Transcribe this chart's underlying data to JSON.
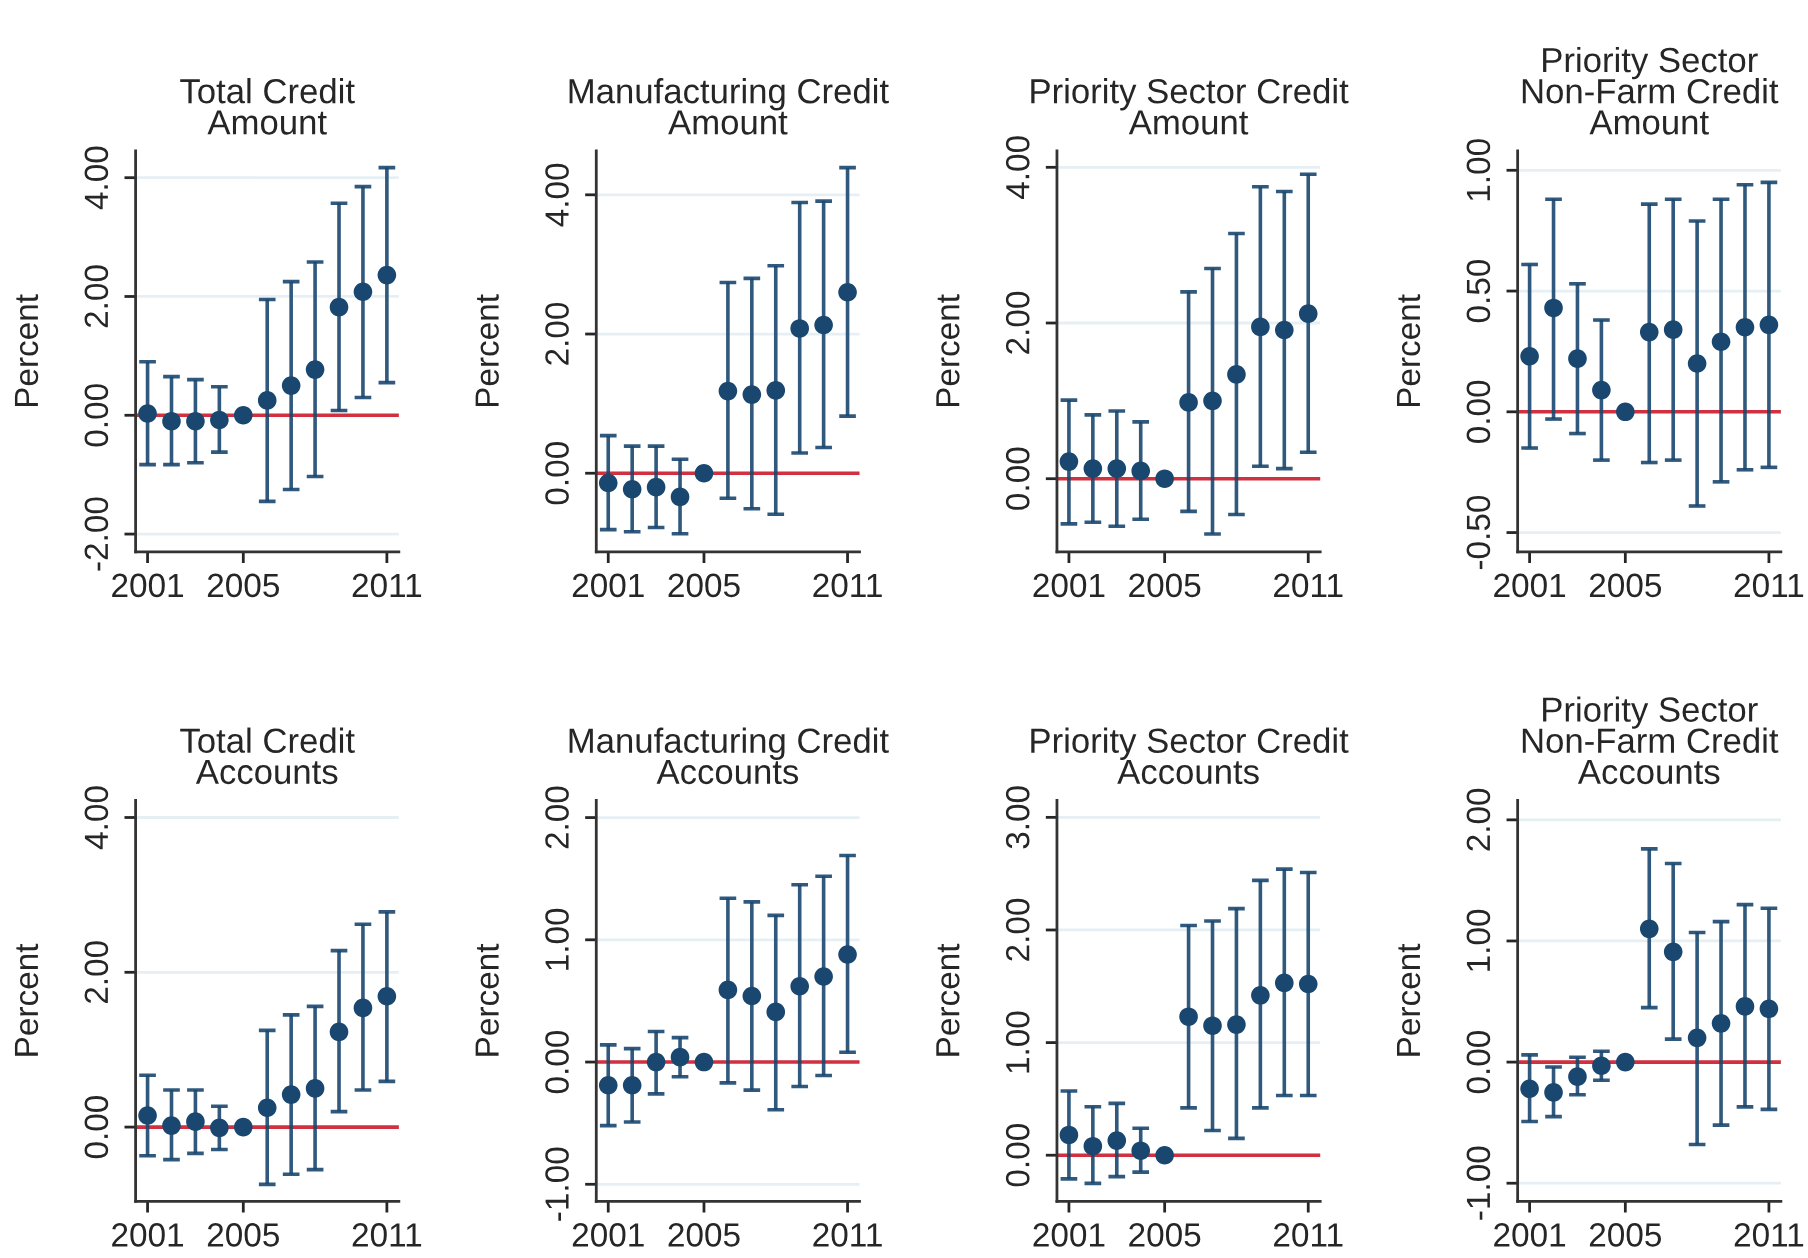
{
  "chart_data": [
    {
      "type": "scatter",
      "title": "Total Credit\nAmount",
      "ylabel": "Percent",
      "x": [
        2001,
        2002,
        2003,
        2004,
        2005,
        2006,
        2007,
        2008,
        2009,
        2010,
        2011
      ],
      "xlim": [
        2000.5,
        2011.5
      ],
      "xticks": [
        2001,
        2005,
        2011
      ],
      "ylim": [
        -2.3,
        4.45
      ],
      "yticks": [
        {
          "value": -2,
          "label": "-2.00"
        },
        {
          "value": 0,
          "label": "0.00"
        },
        {
          "value": 2,
          "label": "2.00"
        },
        {
          "value": 4,
          "label": "4.00"
        }
      ],
      "grid": "y",
      "marker": "circle",
      "ref_lines": [
        {
          "axis": "y",
          "value": 0,
          "color": "#d0303f"
        }
      ],
      "series": [
        {
          "color": "#1a476f",
          "values": [
            0.03,
            -0.1,
            -0.1,
            -0.08,
            0,
            0.25,
            0.5,
            0.77,
            1.82,
            2.08,
            2.36
          ],
          "errors": [
            [
              -0.83,
              0.9
            ],
            [
              -0.83,
              0.65
            ],
            [
              -0.8,
              0.6
            ],
            [
              -0.62,
              0.48
            ],
            null,
            [
              -1.45,
              1.95
            ],
            [
              -1.25,
              2.25
            ],
            [
              -1.03,
              2.58
            ],
            [
              0.08,
              3.57
            ],
            [
              0.3,
              3.85
            ],
            [
              0.55,
              4.17
            ]
          ]
        }
      ]
    },
    {
      "type": "scatter",
      "title": "Manufacturing Credit\nAmount",
      "ylabel": "Percent",
      "x": [
        2001,
        2002,
        2003,
        2004,
        2005,
        2006,
        2007,
        2008,
        2009,
        2010,
        2011
      ],
      "xlim": [
        2000.5,
        2011.5
      ],
      "xticks": [
        2001,
        2005,
        2011
      ],
      "ylim": [
        -1.13,
        4.63
      ],
      "yticks": [
        {
          "value": 0,
          "label": "0.00"
        },
        {
          "value": 2,
          "label": "2.00"
        },
        {
          "value": 4,
          "label": "4.00"
        }
      ],
      "grid": "y",
      "marker": "circle",
      "ref_lines": [
        {
          "axis": "y",
          "value": 0,
          "color": "#d0303f"
        }
      ],
      "series": [
        {
          "color": "#1a476f",
          "values": [
            -0.14,
            -0.23,
            -0.2,
            -0.34,
            0,
            1.18,
            1.13,
            1.19,
            2.08,
            2.13,
            2.6
          ],
          "errors": [
            [
              -0.81,
              0.54
            ],
            [
              -0.84,
              0.39
            ],
            [
              -0.78,
              0.39
            ],
            [
              -0.87,
              0.2
            ],
            null,
            [
              -0.36,
              2.74
            ],
            [
              -0.51,
              2.8
            ],
            [
              -0.59,
              2.98
            ],
            [
              0.29,
              3.89
            ],
            [
              0.37,
              3.91
            ],
            [
              0.82,
              4.39
            ]
          ]
        }
      ]
    },
    {
      "type": "scatter",
      "title": "Priority Sector Credit\nAmount",
      "ylabel": "Percent",
      "x": [
        2001,
        2002,
        2003,
        2004,
        2005,
        2006,
        2007,
        2008,
        2009,
        2010,
        2011
      ],
      "xlim": [
        2000.5,
        2011.5
      ],
      "xticks": [
        2001,
        2005,
        2011
      ],
      "ylim": [
        -0.94,
        4.21
      ],
      "yticks": [
        {
          "value": 0,
          "label": "0.00"
        },
        {
          "value": 2,
          "label": "2.00"
        },
        {
          "value": 4,
          "label": "4.00"
        }
      ],
      "grid": "y",
      "marker": "circle",
      "ref_lines": [
        {
          "axis": "y",
          "value": 0,
          "color": "#d0303f"
        }
      ],
      "series": [
        {
          "color": "#1a476f",
          "values": [
            0.22,
            0.13,
            0.13,
            0.1,
            0,
            0.98,
            1.0,
            1.34,
            1.95,
            1.91,
            2.12
          ],
          "errors": [
            [
              -0.58,
              1.01
            ],
            [
              -0.56,
              0.82
            ],
            [
              -0.61,
              0.87
            ],
            [
              -0.52,
              0.73
            ],
            null,
            [
              -0.42,
              2.4
            ],
            [
              -0.71,
              2.7
            ],
            [
              -0.46,
              3.15
            ],
            [
              0.16,
              3.75
            ],
            [
              0.13,
              3.69
            ],
            [
              0.34,
              3.91
            ]
          ]
        }
      ]
    },
    {
      "type": "scatter",
      "title": "Priority Sector\nNon-Farm Credit\nAmount",
      "ylabel": "Percent",
      "x": [
        2001,
        2002,
        2003,
        2004,
        2005,
        2006,
        2007,
        2008,
        2009,
        2010,
        2011
      ],
      "xlim": [
        2000.5,
        2011.5
      ],
      "xticks": [
        2001,
        2005,
        2011
      ],
      "ylim": [
        -0.58,
        1.08
      ],
      "yticks": [
        {
          "value": -0.5,
          "label": "-0.50"
        },
        {
          "value": 0,
          "label": "0.00"
        },
        {
          "value": 0.5,
          "label": "0.50"
        },
        {
          "value": 1,
          "label": "1.00"
        }
      ],
      "grid": "y",
      "marker": "circle",
      "ref_lines": [
        {
          "axis": "y",
          "value": 0,
          "color": "#d0303f"
        }
      ],
      "series": [
        {
          "color": "#1a476f",
          "values": [
            0.23,
            0.43,
            0.22,
            0.09,
            0,
            0.33,
            0.34,
            0.2,
            0.29,
            0.35,
            0.36
          ],
          "errors": [
            [
              -0.15,
              0.61
            ],
            [
              -0.03,
              0.88
            ],
            [
              -0.09,
              0.53
            ],
            [
              -0.2,
              0.38
            ],
            null,
            [
              -0.21,
              0.86
            ],
            [
              -0.2,
              0.88
            ],
            [
              -0.39,
              0.79
            ],
            [
              -0.29,
              0.88
            ],
            [
              -0.24,
              0.94
            ],
            [
              -0.23,
              0.95
            ]
          ]
        }
      ]
    },
    {
      "type": "scatter",
      "title": "Total Credit\nAccounts",
      "ylabel": "Percent",
      "x": [
        2001,
        2002,
        2003,
        2004,
        2005,
        2006,
        2007,
        2008,
        2009,
        2010,
        2011
      ],
      "xlim": [
        2000.5,
        2011.5
      ],
      "xticks": [
        2001,
        2005,
        2011
      ],
      "ylim": [
        -0.96,
        4.22
      ],
      "yticks": [
        {
          "value": 0,
          "label": "0.00"
        },
        {
          "value": 2,
          "label": "2.00"
        },
        {
          "value": 4,
          "label": "4.00"
        }
      ],
      "grid": "y",
      "marker": "circle",
      "ref_lines": [
        {
          "axis": "y",
          "value": 0,
          "color": "#d0303f"
        }
      ],
      "series": [
        {
          "color": "#1a476f",
          "values": [
            0.15,
            0.02,
            0.07,
            -0.01,
            0,
            0.25,
            0.42,
            0.5,
            1.23,
            1.54,
            1.69
          ],
          "errors": [
            [
              -0.37,
              0.67
            ],
            [
              -0.42,
              0.48
            ],
            [
              -0.34,
              0.48
            ],
            [
              -0.29,
              0.27
            ],
            null,
            [
              -0.74,
              1.25
            ],
            [
              -0.61,
              1.45
            ],
            [
              -0.55,
              1.56
            ],
            [
              0.2,
              2.28
            ],
            [
              0.48,
              2.62
            ],
            [
              0.59,
              2.78
            ]
          ]
        }
      ]
    },
    {
      "type": "scatter",
      "title": "Manufacturing Credit\nAccounts",
      "ylabel": "Percent",
      "x": [
        2001,
        2002,
        2003,
        2004,
        2005,
        2006,
        2007,
        2008,
        2009,
        2010,
        2011
      ],
      "xlim": [
        2000.5,
        2011.5
      ],
      "xticks": [
        2001,
        2005,
        2011
      ],
      "ylim": [
        -1.14,
        2.14
      ],
      "yticks": [
        {
          "value": -1,
          "label": "-1.00"
        },
        {
          "value": 0,
          "label": "0.00"
        },
        {
          "value": 1,
          "label": "1.00"
        },
        {
          "value": 2,
          "label": "2.00"
        }
      ],
      "grid": "y",
      "marker": "circle",
      "ref_lines": [
        {
          "axis": "y",
          "value": 0,
          "color": "#d0303f"
        }
      ],
      "series": [
        {
          "color": "#1a476f",
          "values": [
            -0.19,
            -0.19,
            0.0,
            0.04,
            0,
            0.59,
            0.54,
            0.41,
            0.62,
            0.7,
            0.88
          ],
          "errors": [
            [
              -0.52,
              0.14
            ],
            [
              -0.49,
              0.11
            ],
            [
              -0.26,
              0.25
            ],
            [
              -0.12,
              0.2
            ],
            null,
            [
              -0.17,
              1.34
            ],
            [
              -0.23,
              1.31
            ],
            [
              -0.39,
              1.2
            ],
            [
              -0.2,
              1.45
            ],
            [
              -0.11,
              1.52
            ],
            [
              0.08,
              1.69
            ]
          ]
        }
      ]
    },
    {
      "type": "scatter",
      "title": "Priority Sector Credit\nAccounts",
      "ylabel": "Percent",
      "x": [
        2001,
        2002,
        2003,
        2004,
        2005,
        2006,
        2007,
        2008,
        2009,
        2010,
        2011
      ],
      "xlim": [
        2000.5,
        2011.5
      ],
      "xticks": [
        2001,
        2005,
        2011
      ],
      "ylim": [
        -0.41,
        3.15
      ],
      "yticks": [
        {
          "value": 0,
          "label": "0.00"
        },
        {
          "value": 1,
          "label": "1.00"
        },
        {
          "value": 2,
          "label": "2.00"
        },
        {
          "value": 3,
          "label": "3.00"
        }
      ],
      "grid": "y",
      "marker": "circle",
      "ref_lines": [
        {
          "axis": "y",
          "value": 0,
          "color": "#d0303f"
        }
      ],
      "series": [
        {
          "color": "#1a476f",
          "values": [
            0.18,
            0.08,
            0.13,
            0.04,
            0,
            1.23,
            1.15,
            1.16,
            1.42,
            1.53,
            1.52
          ],
          "errors": [
            [
              -0.21,
              0.57
            ],
            [
              -0.25,
              0.43
            ],
            [
              -0.19,
              0.46
            ],
            [
              -0.15,
              0.24
            ],
            null,
            [
              0.42,
              2.04
            ],
            [
              0.22,
              2.08
            ],
            [
              0.15,
              2.19
            ],
            [
              0.42,
              2.44
            ],
            [
              0.53,
              2.54
            ],
            [
              0.53,
              2.51
            ]
          ]
        }
      ]
    },
    {
      "type": "scatter",
      "title": "Priority Sector\nNon-Farm Credit\nAccounts",
      "ylabel": "Percent",
      "x": [
        2001,
        2002,
        2003,
        2004,
        2005,
        2006,
        2007,
        2008,
        2009,
        2010,
        2011
      ],
      "xlim": [
        2000.5,
        2011.5
      ],
      "xticks": [
        2001,
        2005,
        2011
      ],
      "ylim": [
        -1.15,
        2.16
      ],
      "yticks": [
        {
          "value": -1,
          "label": "-1.00"
        },
        {
          "value": 0,
          "label": "0.00"
        },
        {
          "value": 1,
          "label": "1.00"
        },
        {
          "value": 2,
          "label": "2.00"
        }
      ],
      "grid": "y",
      "marker": "circle",
      "ref_lines": [
        {
          "axis": "y",
          "value": 0,
          "color": "#d0303f"
        }
      ],
      "series": [
        {
          "color": "#1a476f",
          "values": [
            -0.22,
            -0.25,
            -0.12,
            -0.03,
            0,
            1.1,
            0.91,
            0.2,
            0.32,
            0.46,
            0.44
          ],
          "errors": [
            [
              -0.49,
              0.06
            ],
            [
              -0.45,
              -0.04
            ],
            [
              -0.27,
              0.04
            ],
            [
              -0.15,
              0.09
            ],
            null,
            [
              0.45,
              1.76
            ],
            [
              0.19,
              1.64
            ],
            [
              -0.68,
              1.07
            ],
            [
              -0.52,
              1.16
            ],
            [
              -0.37,
              1.3
            ],
            [
              -0.39,
              1.27
            ]
          ]
        }
      ]
    }
  ]
}
